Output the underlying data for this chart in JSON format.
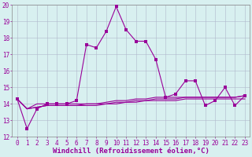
{
  "xlabel": "Windchill (Refroidissement éolien,°C)",
  "x": [
    0,
    1,
    2,
    3,
    4,
    5,
    6,
    7,
    8,
    9,
    10,
    11,
    12,
    13,
    14,
    15,
    16,
    17,
    18,
    19,
    20,
    21,
    22,
    23
  ],
  "line1": [
    14.3,
    12.5,
    13.7,
    14.0,
    14.0,
    14.0,
    14.2,
    17.6,
    17.4,
    18.4,
    19.9,
    18.5,
    17.8,
    17.8,
    16.7,
    14.4,
    14.6,
    15.4,
    15.4,
    13.9,
    14.2,
    15.0,
    13.9,
    14.5
  ],
  "line2": [
    14.3,
    13.7,
    14.0,
    14.0,
    14.0,
    14.0,
    14.0,
    14.0,
    14.0,
    14.1,
    14.2,
    14.2,
    14.3,
    14.3,
    14.4,
    14.4,
    14.4,
    14.4,
    14.4,
    14.4,
    14.4,
    14.4,
    14.4,
    14.5
  ],
  "line3": [
    14.3,
    13.7,
    13.8,
    13.9,
    13.9,
    13.9,
    13.9,
    13.9,
    13.9,
    14.0,
    14.0,
    14.1,
    14.1,
    14.2,
    14.2,
    14.2,
    14.2,
    14.3,
    14.3,
    14.3,
    14.3,
    14.3,
    14.3,
    14.3
  ],
  "line4": [
    14.3,
    13.7,
    13.8,
    13.9,
    13.9,
    13.9,
    13.9,
    14.0,
    14.0,
    14.0,
    14.1,
    14.1,
    14.2,
    14.2,
    14.3,
    14.3,
    14.3,
    14.4,
    14.4,
    14.4,
    14.4,
    14.4,
    14.4,
    14.5
  ],
  "line_color": "#990099",
  "bg_color": "#d8f0f0",
  "grid_color": "#b0b8cc",
  "ylim": [
    12,
    20
  ],
  "yticks": [
    12,
    13,
    14,
    15,
    16,
    17,
    18,
    19,
    20
  ],
  "tick_fontsize": 5.5,
  "xlabel_fontsize": 6.5,
  "marker_size": 2.5,
  "line_width": 0.8
}
